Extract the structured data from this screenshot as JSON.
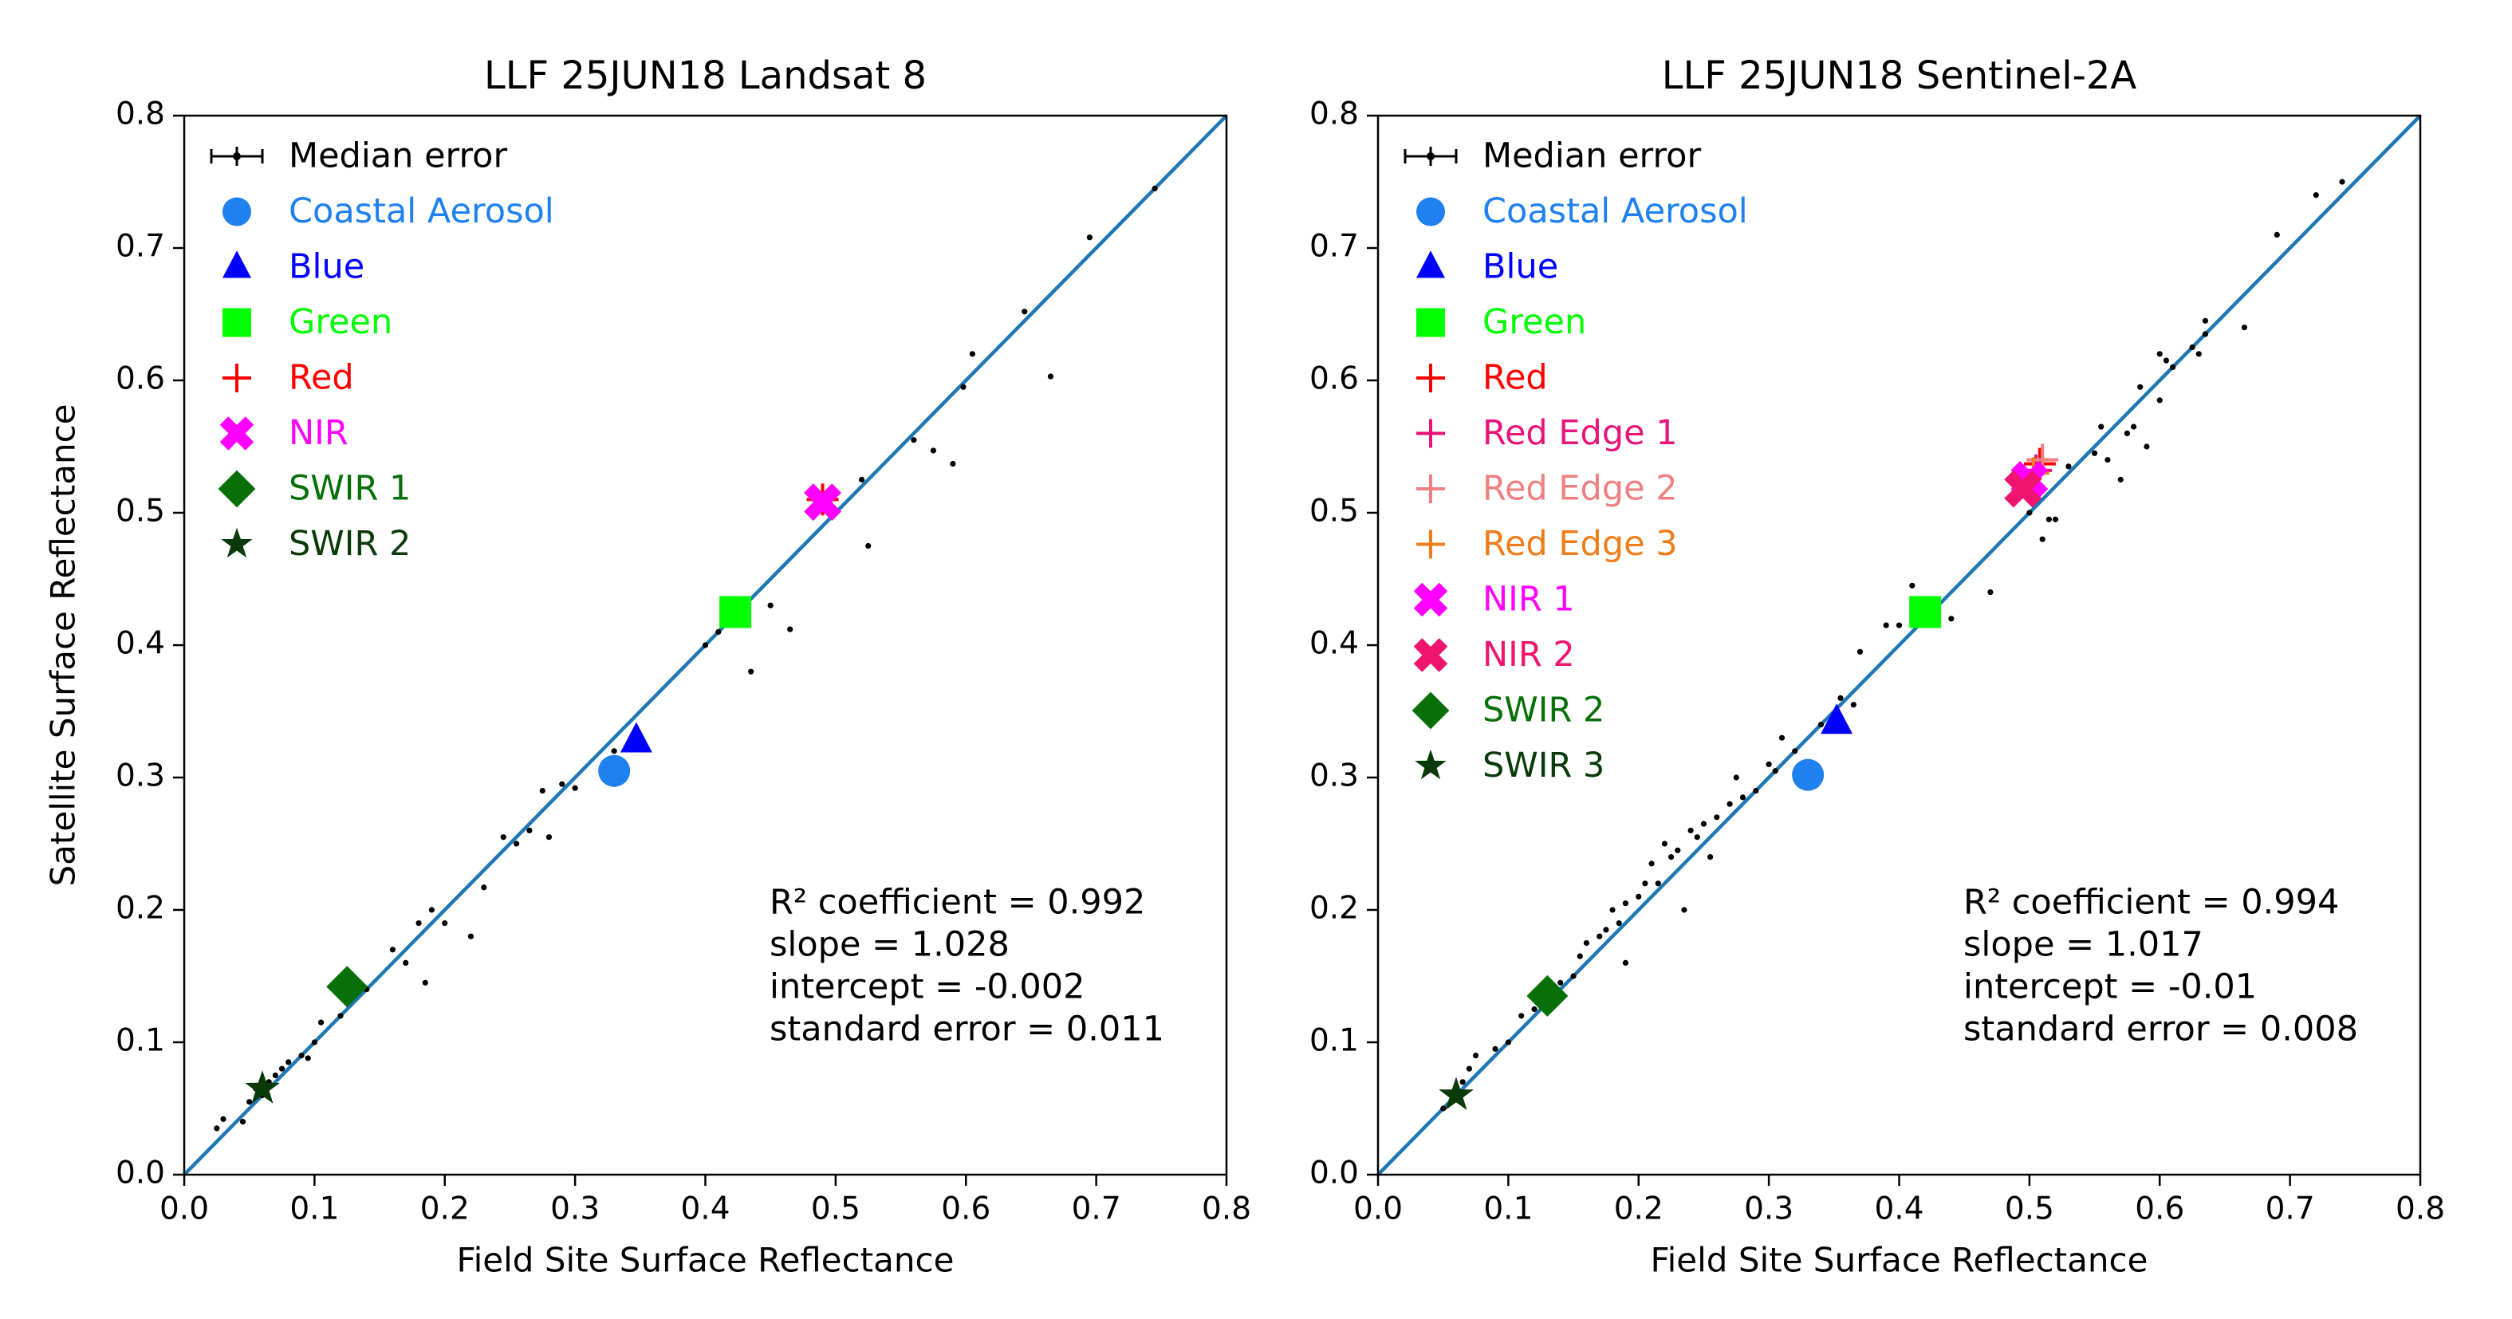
{
  "chart_data": [
    {
      "type": "scatter",
      "title": "LLF 25JUN18 Landsat 8",
      "xlabel": "Field Site Surface Reflectance",
      "ylabel": "Satellite Surface Reflectance",
      "xlim": [
        0,
        0.8
      ],
      "ylim": [
        0,
        0.8
      ],
      "xticks": [
        {
          "value": 0,
          "label": "0.0"
        },
        0.1,
        0.2,
        0.3,
        0.4,
        0.5,
        0.6,
        0.7,
        0.8
      ],
      "yticks": [
        {
          "value": 0,
          "label": "0.0"
        },
        0.1,
        0.2,
        0.3,
        0.4,
        0.5,
        0.6,
        0.7,
        0.8
      ],
      "legend": "upper left",
      "fit_line": {
        "color": "#1f77b4",
        "x": [
          0,
          0.8
        ],
        "y": [
          0,
          0.8
        ]
      },
      "series": [
        {
          "name": "Median error",
          "color": "#000000",
          "marker": "errorbar",
          "x": [
            0.025,
            0.03,
            0.045,
            0.05,
            0.055,
            0.06,
            0.065,
            0.07,
            0.075,
            0.08,
            0.09,
            0.095,
            0.1,
            0.105,
            0.12,
            0.13,
            0.14,
            0.16,
            0.17,
            0.18,
            0.185,
            0.19,
            0.2,
            0.22,
            0.23,
            0.245,
            0.255,
            0.265,
            0.275,
            0.28,
            0.29,
            0.3,
            0.33,
            0.33,
            0.4,
            0.41,
            0.45,
            0.465,
            0.435,
            0.52,
            0.525,
            0.56,
            0.575,
            0.59,
            0.598,
            0.605,
            0.645,
            0.665,
            0.695,
            0.745
          ],
          "values": [
            0.035,
            0.042,
            0.04,
            0.055,
            0.065,
            0.06,
            0.07,
            0.075,
            0.08,
            0.085,
            0.09,
            0.088,
            0.1,
            0.115,
            0.12,
            0.135,
            0.14,
            0.17,
            0.16,
            0.19,
            0.145,
            0.2,
            0.19,
            0.18,
            0.217,
            0.255,
            0.25,
            0.26,
            0.29,
            0.255,
            0.295,
            0.292,
            0.32,
            0.295,
            0.4,
            0.41,
            0.43,
            0.412,
            0.38,
            0.525,
            0.475,
            0.555,
            0.547,
            0.537,
            0.595,
            0.62,
            0.652,
            0.603,
            0.708,
            0.745
          ]
        },
        {
          "name": "Coastal Aerosol",
          "color": "#1f80f0",
          "marker": "circle",
          "x": [
            0.33
          ],
          "values": [
            0.305
          ]
        },
        {
          "name": "Blue",
          "color": "#0000ff",
          "marker": "triangle",
          "x": [
            0.347
          ],
          "values": [
            0.328
          ]
        },
        {
          "name": "Green",
          "color": "#00ff00",
          "marker": "square",
          "x": [
            0.423
          ],
          "values": [
            0.425
          ]
        },
        {
          "name": "Red",
          "color": "#ff0000",
          "marker": "plus",
          "x": [
            0.49
          ],
          "values": [
            0.51
          ]
        },
        {
          "name": "NIR",
          "color": "#ff00ff",
          "marker": "x",
          "x": [
            0.49
          ],
          "values": [
            0.508
          ]
        },
        {
          "name": "SWIR 1",
          "color": "#087008",
          "marker": "diamond",
          "x": [
            0.125
          ],
          "values": [
            0.142
          ]
        },
        {
          "name": "SWIR 2",
          "color": "#0a3a0a",
          "marker": "star",
          "x": [
            0.06
          ],
          "values": [
            0.065
          ]
        }
      ],
      "annotations": [
        "R² coefficient = 0.992",
        "slope = 1.028",
        "intercept = -0.002",
        "standard error = 0.011"
      ]
    },
    {
      "type": "scatter",
      "title": "LLF 25JUN18 Sentinel-2A",
      "xlabel": "Field Site Surface Reflectance",
      "xlim": [
        0,
        0.8
      ],
      "ylim": [
        0,
        0.8
      ],
      "xticks": [
        {
          "value": 0,
          "label": "0.0"
        },
        0.1,
        0.2,
        0.3,
        0.4,
        0.5,
        0.6,
        0.7,
        0.8
      ],
      "yticks": [
        {
          "value": 0,
          "label": "0.0"
        },
        0.1,
        0.2,
        0.3,
        0.4,
        0.5,
        0.6,
        0.7,
        0.8
      ],
      "legend": "upper left",
      "fit_line": {
        "color": "#1f77b4",
        "x": [
          0,
          0.8
        ],
        "y": [
          0,
          0.8
        ]
      },
      "series": [
        {
          "name": "Median error",
          "color": "#000000",
          "marker": "errorbar",
          "x": [
            0.05,
            0.06,
            0.065,
            0.07,
            0.075,
            0.09,
            0.1,
            0.11,
            0.12,
            0.13,
            0.14,
            0.15,
            0.155,
            0.16,
            0.17,
            0.175,
            0.18,
            0.185,
            0.19,
            0.19,
            0.2,
            0.205,
            0.21,
            0.215,
            0.22,
            0.225,
            0.23,
            0.235,
            0.24,
            0.245,
            0.25,
            0.255,
            0.26,
            0.27,
            0.275,
            0.28,
            0.29,
            0.3,
            0.305,
            0.31,
            0.32,
            0.34,
            0.355,
            0.365,
            0.37,
            0.39,
            0.4,
            0.41,
            0.44,
            0.47,
            0.5,
            0.51,
            0.515,
            0.52,
            0.53,
            0.55,
            0.555,
            0.56,
            0.57,
            0.575,
            0.58,
            0.585,
            0.59,
            0.6,
            0.605,
            0.61,
            0.625,
            0.63,
            0.635,
            0.665,
            0.69,
            0.72,
            0.74,
            0.6,
            0.635
          ],
          "values": [
            0.05,
            0.06,
            0.07,
            0.08,
            0.09,
            0.095,
            0.1,
            0.12,
            0.125,
            0.14,
            0.145,
            0.15,
            0.165,
            0.175,
            0.18,
            0.185,
            0.2,
            0.19,
            0.205,
            0.16,
            0.21,
            0.22,
            0.235,
            0.22,
            0.25,
            0.24,
            0.245,
            0.2,
            0.26,
            0.255,
            0.265,
            0.24,
            0.27,
            0.28,
            0.3,
            0.285,
            0.29,
            0.31,
            0.305,
            0.33,
            0.32,
            0.34,
            0.36,
            0.355,
            0.395,
            0.415,
            0.415,
            0.445,
            0.42,
            0.44,
            0.5,
            0.48,
            0.495,
            0.495,
            0.535,
            0.545,
            0.565,
            0.54,
            0.525,
            0.56,
            0.565,
            0.595,
            0.55,
            0.585,
            0.615,
            0.61,
            0.625,
            0.62,
            0.645,
            0.64,
            0.71,
            0.74,
            0.75,
            0.62,
            0.635
          ]
        },
        {
          "name": "Coastal Aerosol",
          "color": "#1f80f0",
          "marker": "circle",
          "x": [
            0.33
          ],
          "values": [
            0.302
          ]
        },
        {
          "name": "Blue",
          "color": "#0000ff",
          "marker": "triangle",
          "x": [
            0.352
          ],
          "values": [
            0.342
          ]
        },
        {
          "name": "Green",
          "color": "#00ff00",
          "marker": "square",
          "x": [
            0.42
          ],
          "values": [
            0.425
          ]
        },
        {
          "name": "Red",
          "color": "#ff0000",
          "marker": "plus",
          "x": [
            0.508
          ],
          "values": [
            0.537
          ]
        },
        {
          "name": "Red Edge 1",
          "color": "#e8147a",
          "marker": "plus",
          "x": [
            0.505
          ],
          "values": [
            0.532
          ]
        },
        {
          "name": "Red Edge 2",
          "color": "#f08080",
          "marker": "plus",
          "x": [
            0.51
          ],
          "values": [
            0.54
          ]
        },
        {
          "name": "Red Edge 3",
          "color": "#f07d1a",
          "marker": "plus",
          "x": [
            0.503
          ],
          "values": [
            0.53
          ]
        },
        {
          "name": "NIR 1",
          "color": "#ff00ff",
          "marker": "x",
          "x": [
            0.5
          ],
          "values": [
            0.525
          ]
        },
        {
          "name": "NIR 2",
          "color": "#f0146e",
          "marker": "x",
          "x": [
            0.495
          ],
          "values": [
            0.518
          ]
        },
        {
          "name": "SWIR 2",
          "color": "#087008",
          "marker": "diamond",
          "x": [
            0.13
          ],
          "values": [
            0.135
          ]
        },
        {
          "name": "SWIR 3",
          "color": "#0a3a0a",
          "marker": "star",
          "x": [
            0.06
          ],
          "values": [
            0.06
          ]
        }
      ],
      "annotations": [
        "R² coefficient = 0.994",
        "slope = 1.017",
        "intercept = -0.01",
        "standard error = 0.008"
      ]
    }
  ]
}
